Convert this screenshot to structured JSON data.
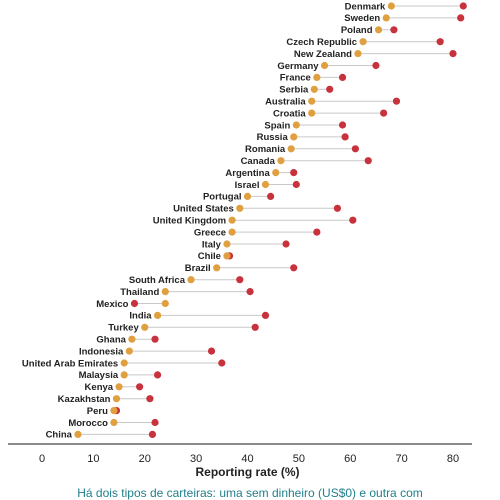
{
  "chart_data": {
    "type": "dumbbell",
    "xlabel": "Reporting rate (%)",
    "xlim": [
      -7,
      85
    ],
    "xticks": [
      0,
      10,
      20,
      30,
      40,
      50,
      60,
      70,
      80
    ],
    "grid": false,
    "colors": {
      "orange": "#e0a040",
      "red": "#c8323c",
      "connector": "#c9c9c9",
      "axis": "#444444"
    },
    "rows": [
      {
        "country": "Denmark",
        "orange": 68,
        "red": 82
      },
      {
        "country": "Sweden",
        "orange": 67,
        "red": 81.5
      },
      {
        "country": "Poland",
        "orange": 65.5,
        "red": 68.5
      },
      {
        "country": "Czech Republic",
        "orange": 62.5,
        "red": 77.5
      },
      {
        "country": "New Zealand",
        "orange": 61.5,
        "red": 80
      },
      {
        "country": "Germany",
        "orange": 55,
        "red": 65
      },
      {
        "country": "France",
        "orange": 53.5,
        "red": 58.5
      },
      {
        "country": "Serbia",
        "orange": 53,
        "red": 56
      },
      {
        "country": "Australia",
        "orange": 52.5,
        "red": 69
      },
      {
        "country": "Croatia",
        "orange": 52.5,
        "red": 66.5
      },
      {
        "country": "Spain",
        "orange": 49.5,
        "red": 58.5
      },
      {
        "country": "Russia",
        "orange": 49,
        "red": 59
      },
      {
        "country": "Romania",
        "orange": 48.5,
        "red": 61
      },
      {
        "country": "Canada",
        "orange": 46.5,
        "red": 63.5
      },
      {
        "country": "Argentina",
        "orange": 45.5,
        "red": 49
      },
      {
        "country": "Israel",
        "orange": 43.5,
        "red": 49.5
      },
      {
        "country": "Portugal",
        "orange": 40,
        "red": 44.5
      },
      {
        "country": "United States",
        "orange": 38.5,
        "red": 57.5
      },
      {
        "country": "United Kingdom",
        "orange": 37,
        "red": 60.5
      },
      {
        "country": "Greece",
        "orange": 37,
        "red": 53.5
      },
      {
        "country": "Italy",
        "orange": 36,
        "red": 47.5
      },
      {
        "country": "Chile",
        "orange": 36,
        "red": 36.5
      },
      {
        "country": "Brazil",
        "orange": 34,
        "red": 49
      },
      {
        "country": "South Africa",
        "orange": 29,
        "red": 38.5
      },
      {
        "country": "Thailand",
        "orange": 24,
        "red": 40.5
      },
      {
        "country": "Mexico",
        "orange": 24,
        "red": 18
      },
      {
        "country": "India",
        "orange": 22.5,
        "red": 43.5
      },
      {
        "country": "Turkey",
        "orange": 20,
        "red": 41.5
      },
      {
        "country": "Ghana",
        "orange": 17.5,
        "red": 22
      },
      {
        "country": "Indonesia",
        "orange": 17,
        "red": 33
      },
      {
        "country": "United Arab Emirates",
        "orange": 16,
        "red": 35
      },
      {
        "country": "Malaysia",
        "orange": 16,
        "red": 22.5
      },
      {
        "country": "Kenya",
        "orange": 15,
        "red": 19
      },
      {
        "country": "Kazakhstan",
        "orange": 14.5,
        "red": 21
      },
      {
        "country": "Peru",
        "orange": 14,
        "red": 14.5
      },
      {
        "country": "Morocco",
        "orange": 14,
        "red": 22
      },
      {
        "country": "China",
        "orange": 7,
        "red": 21.5
      }
    ]
  },
  "caption": "Há dois tipos de carteiras: uma sem dinheiro (US$0) e outra com"
}
